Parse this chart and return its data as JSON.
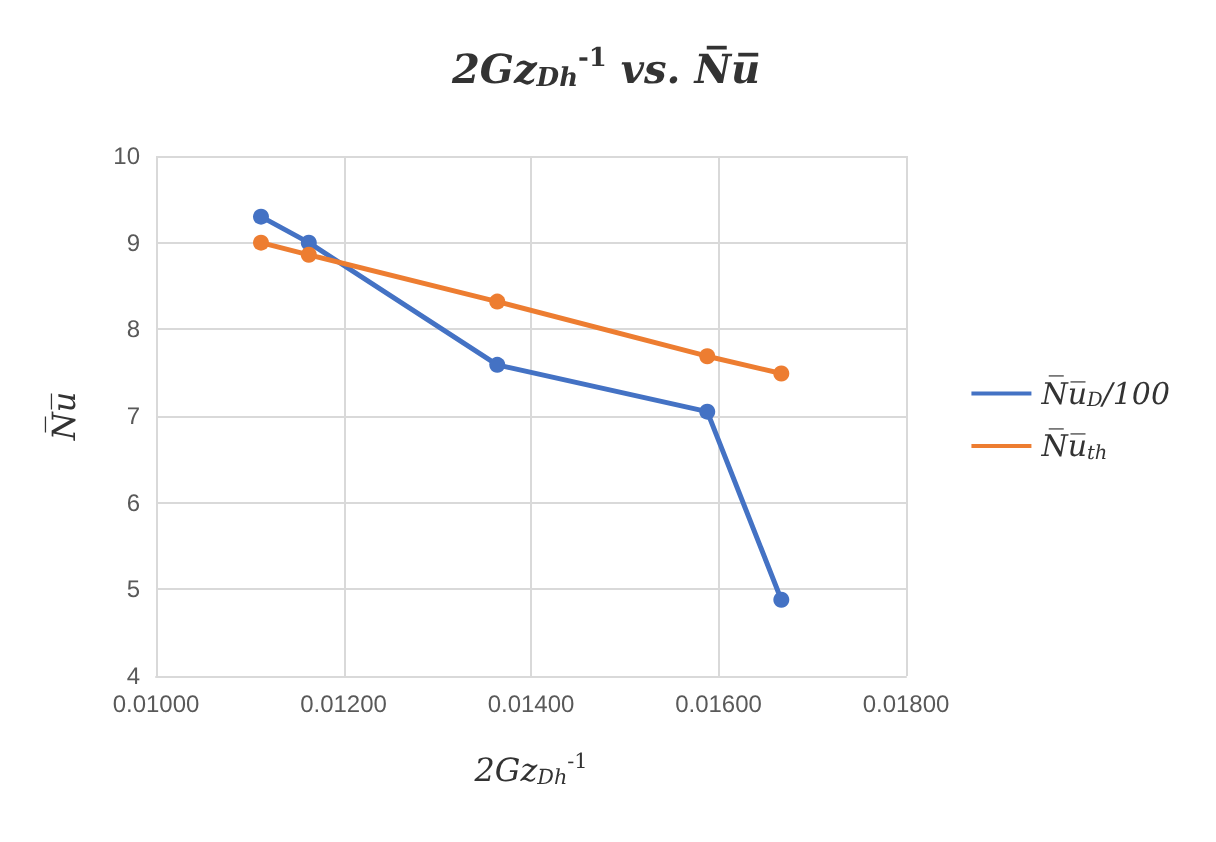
{
  "chart_data": {
    "type": "line",
    "title": "2Gz$_{Dh}$$^{-1}$ vs. N̅u̅",
    "xlabel": "2Gz$_{Dh}$$^{-1}$",
    "ylabel": "N̅u̅",
    "x": [
      0.01112,
      0.01163,
      0.01364,
      0.01588,
      0.01667
    ],
    "series": [
      {
        "name": "N̅u̅$_{D}$/100",
        "color": "#4472c4",
        "values": [
          9.3,
          9.0,
          7.59,
          7.05,
          4.88
        ]
      },
      {
        "name": "N̅u̅$_{th}$",
        "color": "#ed7d31",
        "values": [
          9.0,
          8.86,
          8.32,
          7.69,
          7.49
        ]
      }
    ],
    "xlim": [
      0.01,
      0.018
    ],
    "xticks": [
      {
        "value": 0.01,
        "label": "0.01000"
      },
      {
        "value": 0.012,
        "label": "0.01200"
      },
      {
        "value": 0.014,
        "label": "0.01400"
      },
      {
        "value": 0.016,
        "label": "0.01600"
      },
      {
        "value": 0.018,
        "label": "0.01800"
      }
    ],
    "ylim": [
      4,
      10
    ],
    "yticks": [
      4,
      5,
      6,
      7,
      8,
      9,
      10
    ],
    "grid": true,
    "legend": "right",
    "marker": "circle",
    "line_style": "solid"
  }
}
